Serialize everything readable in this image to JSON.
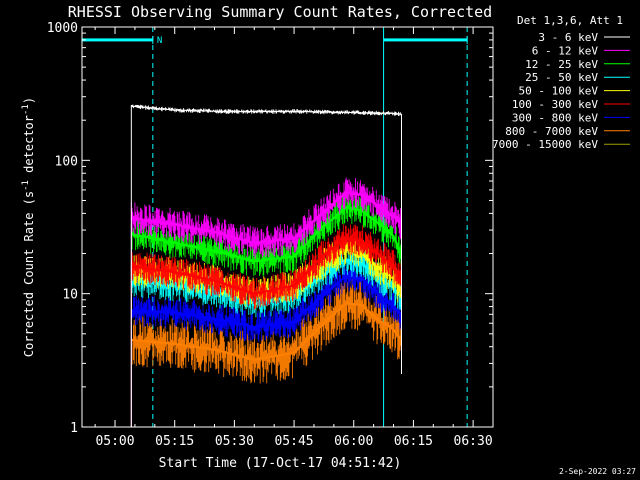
{
  "chart_data": {
    "type": "line",
    "title": "RHESSI Observing Summary Count Rates, Corrected",
    "xlabel": "Start Time (17-Oct-17 04:51:42)",
    "ylabel_parts": [
      "Corrected Count Rate (s",
      "-1",
      " detector",
      "-1",
      ")"
    ],
    "y_scale": "log",
    "ylim": [
      1,
      1000
    ],
    "xlim_minutes_from_0500": [
      -8.3,
      95
    ],
    "x_tick_labels": [
      "05:00",
      "05:15",
      "05:30",
      "05:45",
      "06:00",
      "06:15",
      "06:30"
    ],
    "x_tick_minutes": [
      0,
      15,
      30,
      45,
      60,
      75,
      90
    ],
    "y_tick_labels": [
      "1",
      "10",
      "100",
      "1000"
    ],
    "y_tick_values": [
      1,
      10,
      100,
      1000
    ],
    "legend_title": "Det 1,3,6, Att 1",
    "legend_position": "right",
    "date_stamp": "2-Sep-2022 03:27",
    "series": [
      {
        "name": "3 - 6 keV",
        "color": "#ffffff",
        "x": [
          4.1,
          15,
          30,
          45,
          60,
          70,
          72.0
        ],
        "y": [
          255,
          238,
          232,
          233,
          228,
          225,
          222
        ]
      },
      {
        "name": "6 - 12 keV",
        "color": "#ff00ff",
        "x": [
          4.1,
          15,
          25,
          35,
          45,
          52,
          58,
          62,
          66,
          70,
          72.0
        ],
        "y": [
          37,
          33,
          29,
          24,
          26,
          40,
          57,
          55,
          46,
          38,
          33
        ]
      },
      {
        "name": "12 - 25 keV",
        "color": "#00ff00",
        "x": [
          4.1,
          15,
          25,
          35,
          45,
          52,
          58,
          62,
          66,
          70,
          72.0
        ],
        "y": [
          28,
          24,
          21,
          17.5,
          19,
          31,
          44,
          42,
          34,
          27,
          20
        ]
      },
      {
        "name": "25 - 50 keV",
        "color": "#00ffff",
        "x": [
          4.1,
          15,
          25,
          35,
          45,
          52,
          58,
          62,
          66,
          70,
          72.0
        ],
        "y": [
          12.5,
          11.5,
          10.5,
          8.5,
          9.5,
          13.5,
          18,
          17,
          13.5,
          11,
          9.2
        ]
      },
      {
        "name": "50 - 100 keV",
        "color": "#ffff00",
        "x": [
          4.1,
          15,
          25,
          35,
          45,
          52,
          58,
          62,
          66,
          70,
          72.0
        ],
        "y": [
          15,
          14,
          12.5,
          10,
          11.5,
          16.5,
          21.5,
          20,
          16,
          13,
          10
        ]
      },
      {
        "name": "100 - 300 keV",
        "color": "#ff0000",
        "x": [
          4.1,
          15,
          25,
          35,
          45,
          52,
          58,
          62,
          66,
          70,
          72.0
        ],
        "y": [
          16,
          14.5,
          12.5,
          10,
          11.5,
          19,
          26,
          25,
          20,
          16,
          13
        ]
      },
      {
        "name": "300 - 800 keV",
        "color": "#0000ff",
        "x": [
          4.1,
          15,
          25,
          35,
          45,
          52,
          58,
          62,
          66,
          70,
          72.0
        ],
        "y": [
          7.5,
          7.2,
          6.5,
          5.6,
          6.2,
          9.5,
          13.5,
          13,
          10,
          8,
          6.8
        ]
      },
      {
        "name": "800 - 7000 keV",
        "color": "#ff8000",
        "x": [
          4.1,
          15,
          25,
          35,
          45,
          52,
          58,
          62,
          66,
          70,
          72.0
        ],
        "y": [
          4.5,
          4.2,
          3.8,
          3.2,
          3.6,
          5.8,
          8.5,
          8.2,
          6.4,
          5.4,
          4.4
        ]
      },
      {
        "name": "7000 - 15000 keV",
        "color": "#a0a000",
        "x": [],
        "y": []
      }
    ]
  },
  "overlays": {
    "cyan_color": "#00ffff",
    "solid_verticals_min": [
      -8.3,
      67.5
    ],
    "dashed_verticals_min": [
      9.5,
      88.5
    ],
    "night_bars_min": [
      [
        -8.3,
        9.5
      ],
      [
        67.5,
        88.5
      ]
    ],
    "night_bar_value": 800,
    "night_label": "N"
  }
}
